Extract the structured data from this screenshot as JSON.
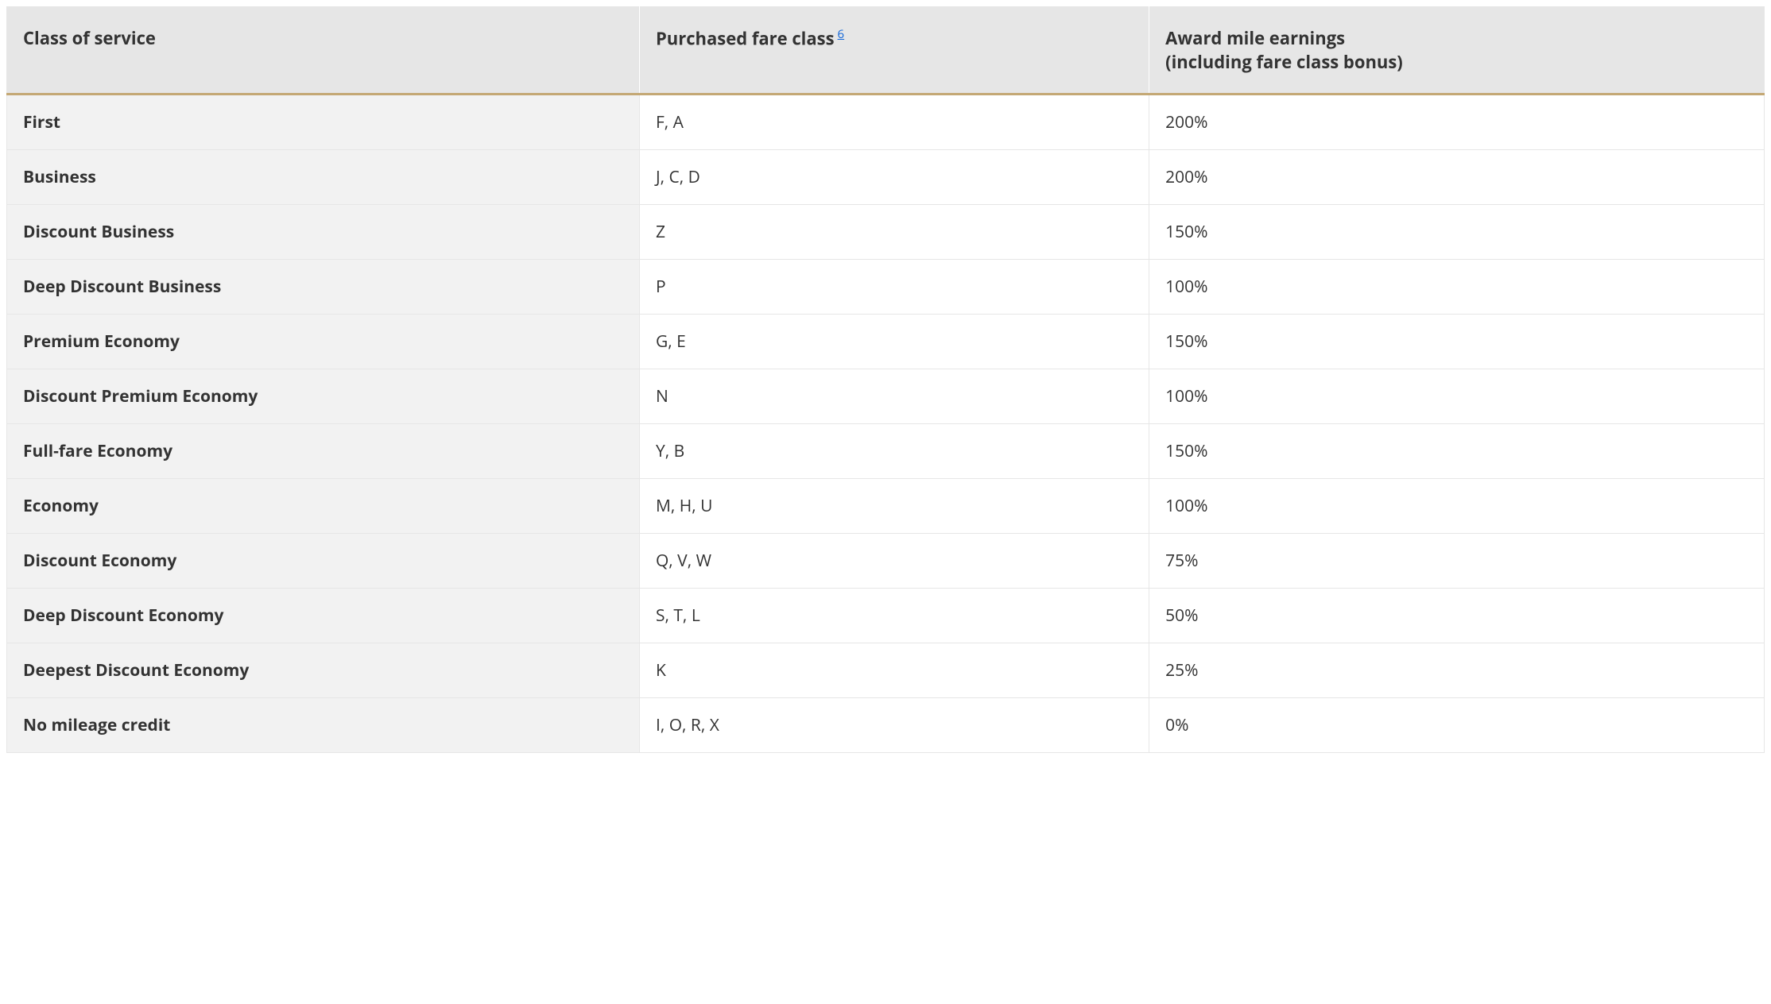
{
  "table": {
    "type": "table",
    "header_bg": "#e6e6e6",
    "header_accent_border": "#c4a875",
    "row_label_bg": "#f2f2f2",
    "cell_bg": "#ffffff",
    "border_color": "#e6e6e6",
    "text_color": "#333333",
    "link_color": "#1266d8",
    "header_fontsize": 22,
    "cell_fontsize": 21,
    "columns": {
      "service": "Class of service",
      "fare": "Purchased fare class",
      "fare_footnote": "6",
      "award_line1": "Award mile earnings",
      "award_line2": "(including fare class bonus)"
    },
    "rows": [
      {
        "service": "First",
        "fare": "F, A",
        "award": "200%"
      },
      {
        "service": "Business",
        "fare": "J, C, D",
        "award": "200%"
      },
      {
        "service": "Discount Business",
        "fare": "Z",
        "award": "150%"
      },
      {
        "service": "Deep Discount Business",
        "fare": "P",
        "award": "100%"
      },
      {
        "service": "Premium Economy",
        "fare": "G, E",
        "award": "150%"
      },
      {
        "service": "Discount Premium Economy",
        "fare": "N",
        "award": "100%"
      },
      {
        "service": "Full-fare Economy",
        "fare": "Y, B",
        "award": "150%"
      },
      {
        "service": "Economy",
        "fare": "M, H, U",
        "award": "100%"
      },
      {
        "service": "Discount Economy",
        "fare": "Q, V, W",
        "award": "75%"
      },
      {
        "service": "Deep Discount Economy",
        "fare": "S, T, L",
        "award": "50%"
      },
      {
        "service": "Deepest Discount Economy",
        "fare": "K",
        "award": "25%"
      },
      {
        "service": "No mileage credit",
        "fare": "I, O, R, X",
        "award": "0%"
      }
    ]
  }
}
